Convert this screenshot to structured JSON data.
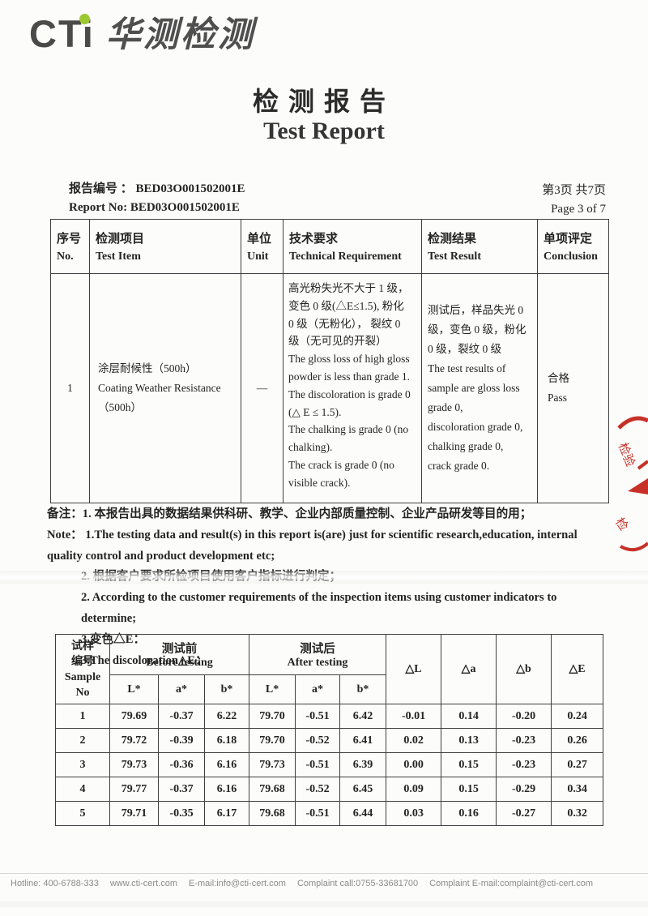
{
  "logo": {
    "brand": "CTi",
    "cn": "华测检测",
    "dot_color": "#9dc832"
  },
  "title": {
    "zh": "检测报告",
    "en": "Test Report"
  },
  "meta": {
    "report_line_zh": "报告编号 ： BED03O001502001E",
    "report_line_en": "Report No:  BED03O001502001E",
    "page_zh": "第3页 共7页",
    "page_en": "Page 3 of 7"
  },
  "main_table": {
    "headers": [
      {
        "zh": "序号",
        "en": "No."
      },
      {
        "zh": "检测项目",
        "en": "Test Item"
      },
      {
        "zh": "单位",
        "en": "Unit"
      },
      {
        "zh": "技术要求",
        "en": "Technical Requirement"
      },
      {
        "zh": "检测结果",
        "en": "Test Result"
      },
      {
        "zh": "单项评定",
        "en": "Conclusion"
      }
    ],
    "row": {
      "no": "1",
      "item": "涂层耐候性（500h）\nCoating Weather Resistance\n （500h）",
      "unit": "—",
      "requirement": "高光粉失光不大于 1 级，\n变色 0 级(△E≤1.5), 粉化\n0 级（无粉化）， 裂纹 0\n级（无可见的开裂）\nThe gloss loss of high gloss\npowder is less than grade 1.\nThe discoloration is grade 0\n(△ E ≤ 1.5).\nThe chalking is grade 0 (no\nchalking).\nThe crack is grade 0 (no\nvisible crack).",
      "result": "测试后，样品失光 0\n级，变色 0 级，粉化\n0 级，裂纹 0 级\nThe test results of\nsample are gloss loss\ngrade 0,\ndiscoloration grade 0,\nchalking grade 0,\ncrack grade 0.",
      "conclusion": "合格\nPass"
    }
  },
  "notes": [
    {
      "text": "备注：1. 本报告出具的数据结果供科研、教学、企业内部质量控制、企业产品研发等目的用；"
    },
    {
      "text": "Note：  1.The testing data and result(s) in this report is(are) just for scientific research,education, internal"
    },
    {
      "text": "quality control and product development etc;"
    },
    {
      "text": "2.  根据客户要求所检项目使用客户指标进行判定；"
    },
    {
      "text": "2. According to the customer requirements of the inspection items using customer indicators to"
    },
    {
      "text": "determine;"
    },
    {
      "text": "3.变色△E："
    },
    {
      "text": "3.The discoloration△E："
    }
  ],
  "lab_table": {
    "sample_header": "试样\n编号\nSample\nNo",
    "before": {
      "zh": "测试前",
      "en": "Before testing"
    },
    "after": {
      "zh": "测试后",
      "en": "After testing"
    },
    "sub_cols": [
      "L*",
      "a*",
      "b*",
      "L*",
      "a*",
      "b*"
    ],
    "delta_cols": [
      "△L",
      "△a",
      "△b",
      "△E"
    ],
    "rows": [
      [
        "1",
        "79.69",
        "-0.37",
        "6.22",
        "79.70",
        "-0.51",
        "6.42",
        "-0.01",
        "0.14",
        "-0.20",
        "0.24"
      ],
      [
        "2",
        "79.72",
        "-0.39",
        "6.18",
        "79.70",
        "-0.52",
        "6.41",
        "0.02",
        "0.13",
        "-0.23",
        "0.26"
      ],
      [
        "3",
        "79.73",
        "-0.36",
        "6.16",
        "79.73",
        "-0.51",
        "6.39",
        "0.00",
        "0.15",
        "-0.23",
        "0.27"
      ],
      [
        "4",
        "79.77",
        "-0.37",
        "6.16",
        "79.68",
        "-0.52",
        "6.45",
        "0.09",
        "0.15",
        "-0.29",
        "0.34"
      ],
      [
        "5",
        "79.71",
        "-0.35",
        "6.17",
        "79.68",
        "-0.51",
        "6.44",
        "0.03",
        "0.16",
        "-0.27",
        "0.32"
      ]
    ]
  },
  "stamp": {
    "color": "#c73127"
  },
  "footer": {
    "items": [
      "Hotline: 400-6788-333",
      "www.cti-cert.com",
      "E-mail:info@cti-cert.com",
      "Complaint call:0755-33681700",
      "Complaint E-mail:complaint@cti-cert.com"
    ]
  }
}
